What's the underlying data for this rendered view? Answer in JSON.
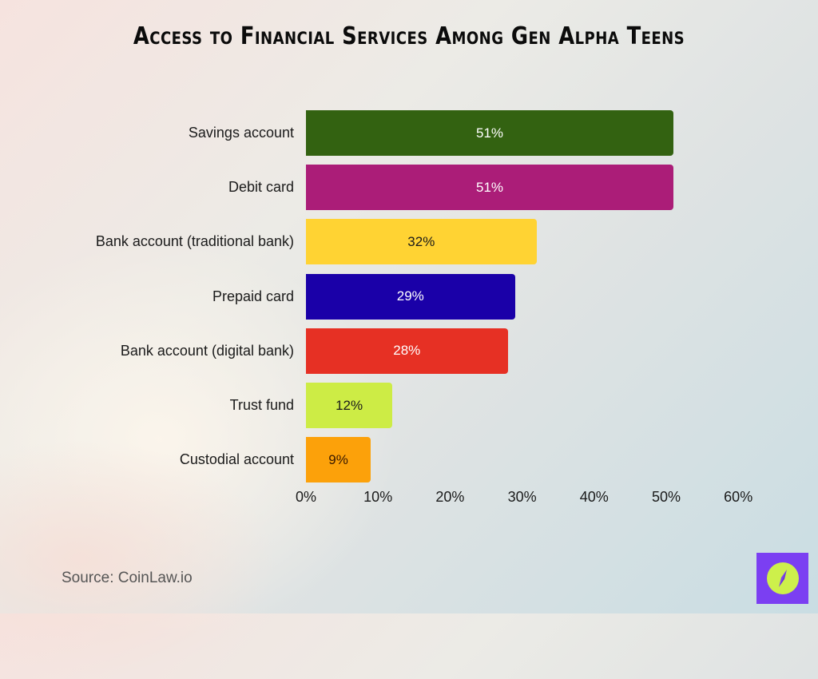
{
  "header": {
    "title": "Access to Financial Services Among Gen Alpha Teens"
  },
  "footer": {
    "source": "Source: CoinLaw.io",
    "logo_icon": "compass-logo-icon",
    "logo_colors": {
      "background": "#7b3ff2",
      "circle": "#cdf04b",
      "needle": "#7b3ff2"
    }
  },
  "axis": {
    "ticks": [
      "0%",
      "10%",
      "20%",
      "30%",
      "40%",
      "50%",
      "60%"
    ]
  },
  "bars": [
    {
      "label": "Savings account",
      "value": 51,
      "display": "51%",
      "color": "#336211",
      "text_color": "#ffffff"
    },
    {
      "label": "Debit card",
      "value": 51,
      "display": "51%",
      "color": "#ab1d78",
      "text_color": "#ffffff"
    },
    {
      "label": "Bank account (traditional bank)",
      "value": 32,
      "display": "32%",
      "color": "#ffd333",
      "text_color": "#1a1a1a"
    },
    {
      "label": "Prepaid card",
      "value": 29,
      "display": "29%",
      "color": "#1a00a8",
      "text_color": "#ffffff"
    },
    {
      "label": "Bank account (digital bank)",
      "value": 28,
      "display": "28%",
      "color": "#e63024",
      "text_color": "#ffffff"
    },
    {
      "label": "Trust fund",
      "value": 12,
      "display": "12%",
      "color": "#cdec45",
      "text_color": "#1a1a1a"
    },
    {
      "label": "Custodial account",
      "value": 9,
      "display": "9%",
      "color": "#fca10a",
      "text_color": "#3a1a00"
    }
  ],
  "chart_data": {
    "type": "bar",
    "orientation": "horizontal",
    "title": "Access to Financial Services Among Gen Alpha Teens",
    "categories": [
      "Savings account",
      "Debit card",
      "Bank account (traditional bank)",
      "Prepaid card",
      "Bank account (digital bank)",
      "Trust fund",
      "Custodial account"
    ],
    "values": [
      51,
      51,
      32,
      29,
      28,
      12,
      9
    ],
    "data_labels": [
      "51%",
      "51%",
      "32%",
      "29%",
      "28%",
      "12%",
      "9%"
    ],
    "colors": [
      "#336211",
      "#ab1d78",
      "#ffd333",
      "#1a00a8",
      "#e63024",
      "#cdec45",
      "#fca10a"
    ],
    "xlabel": "",
    "ylabel": "",
    "xlim": [
      0,
      60
    ],
    "x_ticks": [
      "0%",
      "10%",
      "20%",
      "30%",
      "40%",
      "50%",
      "60%"
    ],
    "grid": false,
    "legend": null,
    "source": "Source: CoinLaw.io"
  }
}
